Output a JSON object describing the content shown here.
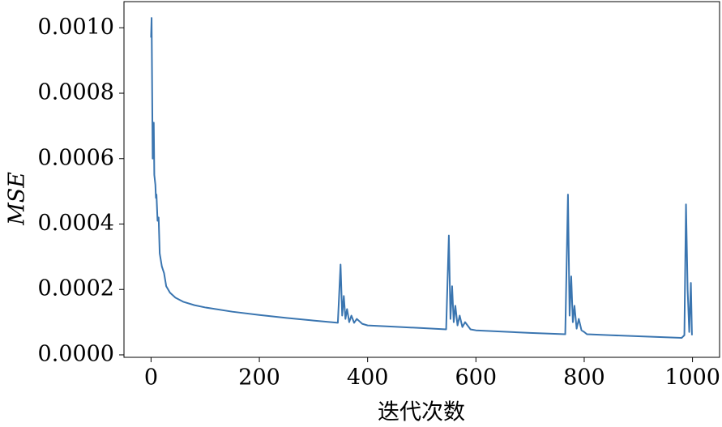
{
  "chart_data": {
    "type": "line",
    "x_label": "迭代次数",
    "y_label": "MSE",
    "x": [
      0,
      1,
      3,
      5,
      6,
      8,
      9,
      10,
      12,
      14,
      16,
      20,
      24,
      28,
      35,
      45,
      60,
      80,
      100,
      150,
      200,
      250,
      300,
      345,
      350,
      353,
      356,
      359,
      362,
      366,
      370,
      375,
      380,
      390,
      400,
      450,
      500,
      545,
      550,
      553,
      556,
      559,
      562,
      566,
      570,
      575,
      580,
      590,
      600,
      700,
      765,
      770,
      773,
      776,
      779,
      782,
      786,
      790,
      795,
      800,
      805,
      850,
      900,
      980,
      985,
      988,
      991,
      994,
      997,
      999
    ],
    "series": [
      {
        "name": "MSE",
        "color": "#3a75b0",
        "values": [
          0.00097,
          0.00103,
          0.0006,
          0.00071,
          0.00055,
          0.00052,
          0.00048,
          0.00049,
          0.00041,
          0.00042,
          0.00031,
          0.00027,
          0.00025,
          0.00021,
          0.00019,
          0.000175,
          0.000162,
          0.000152,
          0.000145,
          0.000132,
          0.000122,
          0.000113,
          0.000105,
          9.8e-05,
          0.000276,
          0.00012,
          0.00018,
          0.00011,
          0.00014,
          0.0001,
          0.00012,
          9.8e-05,
          0.00011,
          9.5e-05,
          9e-05,
          8.6e-05,
          8.2e-05,
          7.8e-05,
          0.000365,
          0.00011,
          0.00021,
          0.0001,
          0.00015,
          9e-05,
          0.00012,
          8.5e-05,
          0.0001,
          7.8e-05,
          7.5e-05,
          6.7e-05,
          6.3e-05,
          0.00049,
          0.00012,
          0.00024,
          0.0001,
          0.00015,
          8e-05,
          0.00011,
          7.5e-05,
          7e-05,
          6.3e-05,
          6e-05,
          5.7e-05,
          5.2e-05,
          6e-05,
          0.00046,
          0.0002,
          7e-05,
          0.00022,
          6e-05
        ]
      }
    ],
    "xlim": [
      -50,
      1050
    ],
    "xticks": [
      0,
      200,
      400,
      600,
      800,
      1000
    ],
    "ylim": [
      -7.5e-06,
      0.00108
    ],
    "yticks": [
      {
        "value": 0,
        "label": "0.0000"
      },
      {
        "value": 0.0002,
        "label": "0.0002"
      },
      {
        "value": 0.0004,
        "label": "0.0004"
      },
      {
        "value": 0.0006,
        "label": "0.0006"
      },
      {
        "value": 0.0008,
        "label": "0.0008"
      },
      {
        "value": 0.001,
        "label": "0.0010"
      }
    ],
    "grid": false
  }
}
